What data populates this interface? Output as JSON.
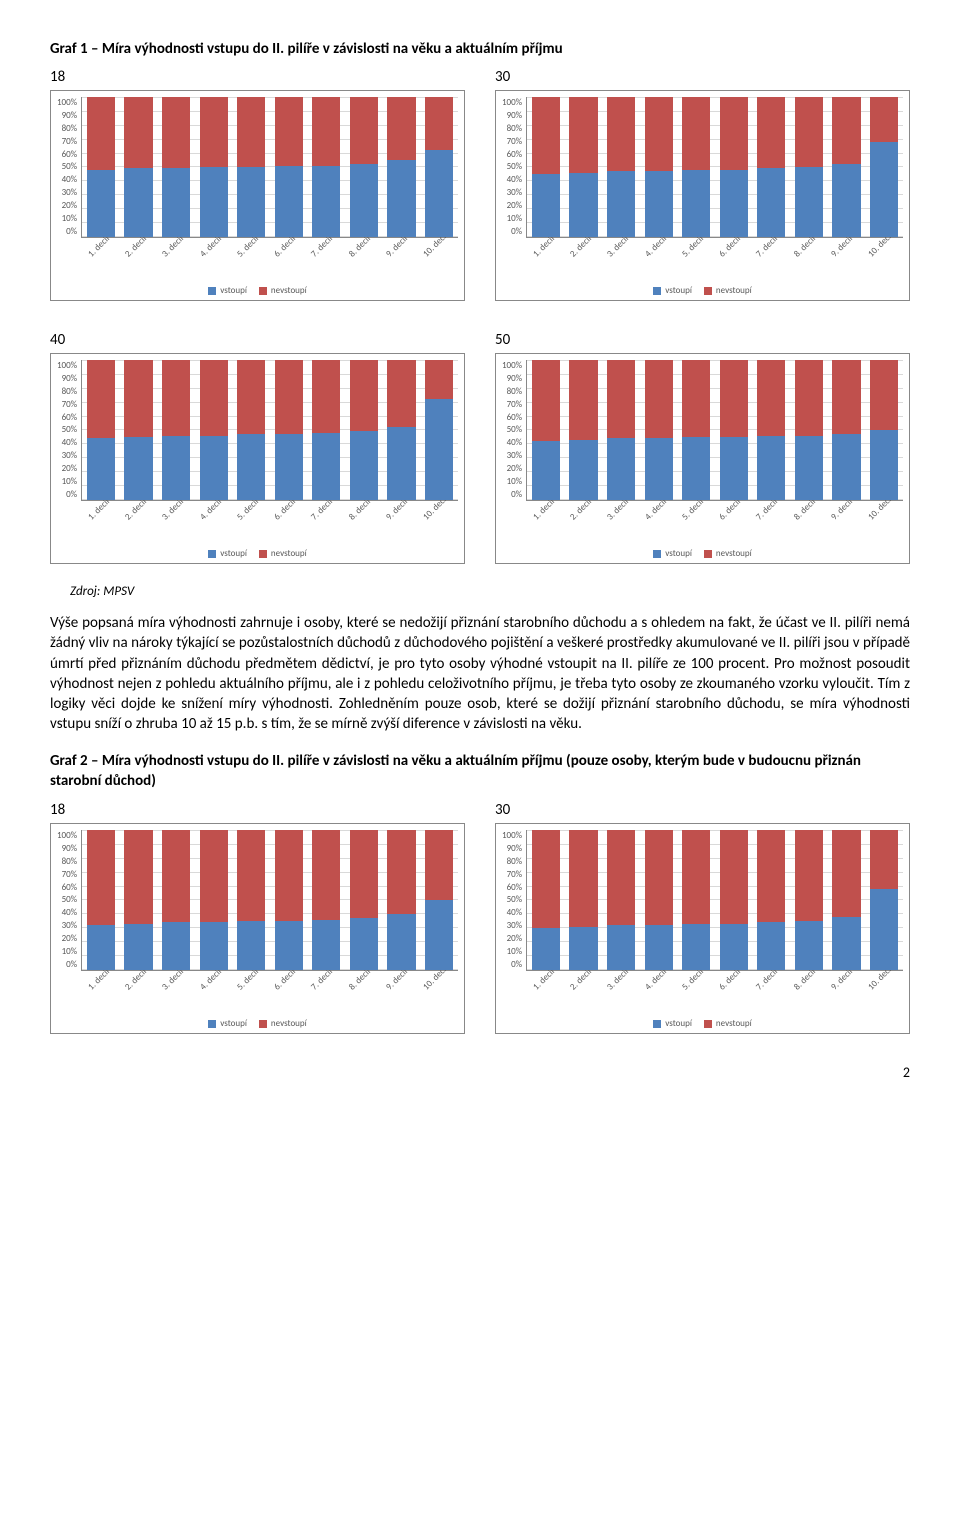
{
  "title1": "Graf 1 – Míra výhodnosti vstupu do II. pilíře v závislosti na věku a aktuálním příjmu",
  "source": "Zdroj: MPSV",
  "paragraph": "Výše popsaná míra výhodnosti zahrnuje i osoby, které se nedožijí přiznání starobního důchodu a s ohledem na fakt, že účast ve II. pilíři nemá žádný vliv na nároky týkající se pozůstalostních důchodů z důchodového pojištění a veškeré prostředky akumulované ve II. pilíři jsou v případě úmrtí před přiznáním důchodu předmětem dědictví, je pro tyto osoby výhodné vstoupit na II. pilíře ze 100 procent. Pro možnost posoudit výhodnost nejen z pohledu aktuálního příjmu, ale i z pohledu celoživotního příjmu, je třeba tyto osoby ze zkoumaného vzorku vyloučit. Tím z logiky věci dojde ke snížení míry výhodnosti. Zohledněním pouze osob, které se dožijí přiznání starobního důchodu, se míra výhodnosti vstupu sníží o zhruba 10 až 15 p.b. s tím, že se mírně zvýší diference v závislosti na věku.",
  "title2": "Graf 2 – Míra výhodnosti vstupu do II. pilíře v závislosti na věku a aktuálním příjmu (pouze osoby, kterým bude v budoucnu přiznán starobní důchod)",
  "page_number": "2",
  "yticks": [
    "100%",
    "90%",
    "80%",
    "70%",
    "60%",
    "50%",
    "40%",
    "30%",
    "20%",
    "10%",
    "0%"
  ],
  "categories": [
    "1. decil",
    "2. decil",
    "3. decil",
    "4. decil",
    "5. decil",
    "6. decil",
    "7. decil",
    "8. decil",
    "9. decil",
    "10. decil"
  ],
  "series_labels": {
    "blue": "vstoupí",
    "red": "nevstoupí"
  },
  "colors": {
    "blue": "#4f81bd",
    "red": "#c0504d",
    "grid": "#d9d9d9",
    "axis": "#888888",
    "text": "#595959",
    "bg": "#ffffff"
  },
  "chart_style": {
    "type": "stacked_bar_100pct",
    "bar_width_pct": 7.5,
    "tick_fontsize": 9,
    "label_rotation_deg": -45,
    "legend_fontsize": 9,
    "title_fontsize": 15,
    "border_color": "#888888"
  },
  "charts_graf1": [
    {
      "label": "18",
      "blue": [
        48,
        49,
        49,
        50,
        50,
        51,
        51,
        52,
        55,
        62
      ]
    },
    {
      "label": "30",
      "blue": [
        45,
        46,
        47,
        47,
        48,
        48,
        49,
        50,
        52,
        68
      ]
    },
    {
      "label": "40",
      "blue": [
        44,
        45,
        46,
        46,
        47,
        47,
        48,
        49,
        52,
        72
      ]
    },
    {
      "label": "50",
      "blue": [
        42,
        43,
        44,
        44,
        45,
        45,
        46,
        46,
        47,
        50
      ]
    }
  ],
  "charts_graf2": [
    {
      "label": "18",
      "blue": [
        32,
        33,
        34,
        34,
        35,
        35,
        36,
        37,
        40,
        50
      ]
    },
    {
      "label": "30",
      "blue": [
        30,
        31,
        32,
        32,
        33,
        33,
        34,
        35,
        38,
        58
      ]
    }
  ]
}
